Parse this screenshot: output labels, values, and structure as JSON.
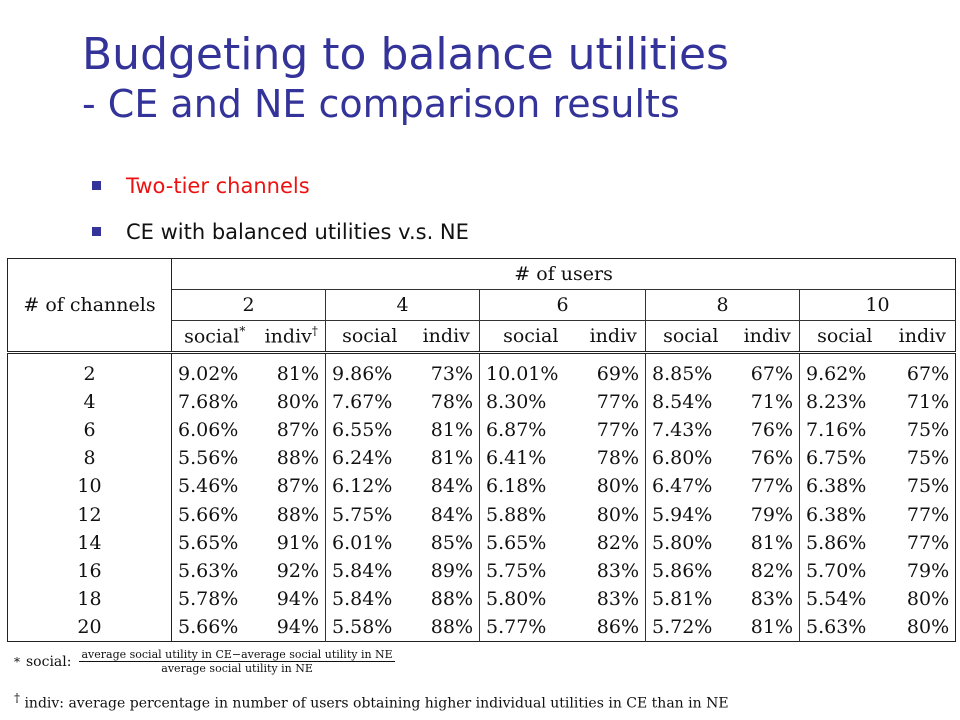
{
  "title": {
    "line1": "Budgeting to balance utilities",
    "line2": "- CE and NE comparison results"
  },
  "bullets": [
    {
      "text": "Two-tier channels",
      "color": "#ee1111"
    },
    {
      "text": "CE with balanced utilities v.s. NE",
      "color": "#111111"
    }
  ],
  "table": {
    "users_header": "# of users",
    "channels_header": "# of channels",
    "user_counts": [
      "2",
      "4",
      "6",
      "8",
      "10"
    ],
    "social_label": "social",
    "indiv_label": "indiv",
    "social_mark": "*",
    "indiv_mark": "†",
    "rows": [
      {
        "channels": "2",
        "values": [
          [
            "9.02%",
            "81%"
          ],
          [
            "9.86%",
            "73%"
          ],
          [
            "10.01%",
            "69%"
          ],
          [
            "8.85%",
            "67%"
          ],
          [
            "9.62%",
            "67%"
          ]
        ]
      },
      {
        "channels": "4",
        "values": [
          [
            "7.68%",
            "80%"
          ],
          [
            "7.67%",
            "78%"
          ],
          [
            "8.30%",
            "77%"
          ],
          [
            "8.54%",
            "71%"
          ],
          [
            "8.23%",
            "71%"
          ]
        ]
      },
      {
        "channels": "6",
        "values": [
          [
            "6.06%",
            "87%"
          ],
          [
            "6.55%",
            "81%"
          ],
          [
            "6.87%",
            "77%"
          ],
          [
            "7.43%",
            "76%"
          ],
          [
            "7.16%",
            "75%"
          ]
        ]
      },
      {
        "channels": "8",
        "values": [
          [
            "5.56%",
            "88%"
          ],
          [
            "6.24%",
            "81%"
          ],
          [
            "6.41%",
            "78%"
          ],
          [
            "6.80%",
            "76%"
          ],
          [
            "6.75%",
            "75%"
          ]
        ]
      },
      {
        "channels": "10",
        "values": [
          [
            "5.46%",
            "87%"
          ],
          [
            "6.12%",
            "84%"
          ],
          [
            "6.18%",
            "80%"
          ],
          [
            "6.47%",
            "77%"
          ],
          [
            "6.38%",
            "75%"
          ]
        ]
      },
      {
        "channels": "12",
        "values": [
          [
            "5.66%",
            "88%"
          ],
          [
            "5.75%",
            "84%"
          ],
          [
            "5.88%",
            "80%"
          ],
          [
            "5.94%",
            "79%"
          ],
          [
            "6.38%",
            "77%"
          ]
        ]
      },
      {
        "channels": "14",
        "values": [
          [
            "5.65%",
            "91%"
          ],
          [
            "6.01%",
            "85%"
          ],
          [
            "5.65%",
            "82%"
          ],
          [
            "5.80%",
            "81%"
          ],
          [
            "5.86%",
            "77%"
          ]
        ]
      },
      {
        "channels": "16",
        "values": [
          [
            "5.63%",
            "92%"
          ],
          [
            "5.84%",
            "89%"
          ],
          [
            "5.75%",
            "83%"
          ],
          [
            "5.86%",
            "82%"
          ],
          [
            "5.70%",
            "79%"
          ]
        ]
      },
      {
        "channels": "18",
        "values": [
          [
            "5.78%",
            "94%"
          ],
          [
            "5.84%",
            "88%"
          ],
          [
            "5.80%",
            "83%"
          ],
          [
            "5.81%",
            "83%"
          ],
          [
            "5.54%",
            "80%"
          ]
        ]
      },
      {
        "channels": "20",
        "values": [
          [
            "5.66%",
            "94%"
          ],
          [
            "5.58%",
            "88%"
          ],
          [
            "5.77%",
            "86%"
          ],
          [
            "5.72%",
            "81%"
          ],
          [
            "5.63%",
            "80%"
          ]
        ]
      }
    ]
  },
  "footnotes": {
    "social": {
      "mark": "*",
      "label": "social:",
      "numerator": "average social utility in CE−average social utility in NE",
      "denominator": "average social utility in NE"
    },
    "indiv": {
      "mark": "†",
      "text": "indiv: average percentage in number of users obtaining higher individual utilities in CE than in NE"
    }
  }
}
